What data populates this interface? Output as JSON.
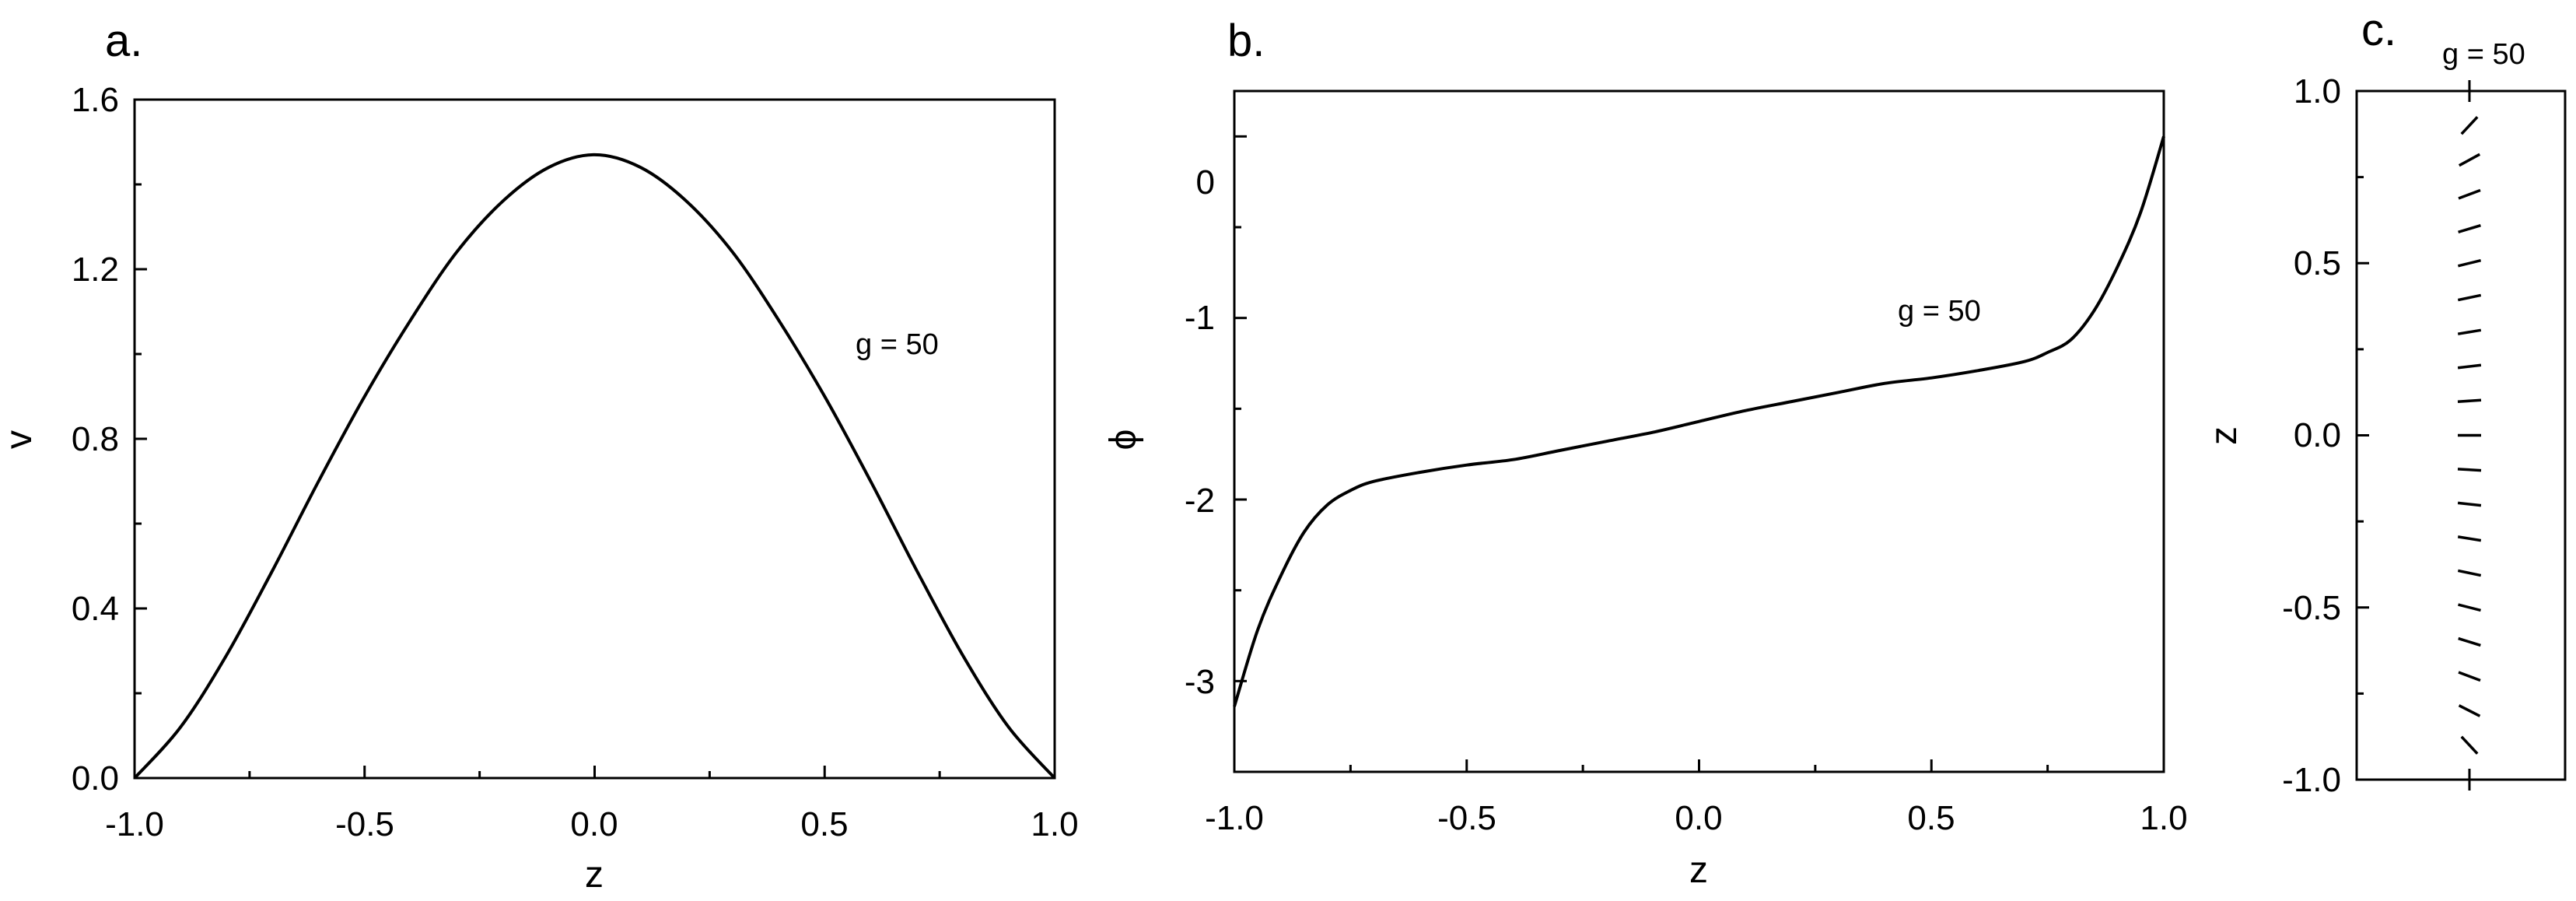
{
  "chart_data": [
    {
      "panel_label": "a.",
      "type": "line",
      "xlabel": "z",
      "ylabel": "v",
      "xlim": [
        -1.0,
        1.0
      ],
      "ylim": [
        0.0,
        1.6
      ],
      "xticks": [
        "-1.0",
        "-0.5",
        "0.0",
        "0.5",
        "1.0"
      ],
      "yticks": [
        "0.0",
        "0.4",
        "0.8",
        "1.2",
        "1.6"
      ],
      "annotation": "g = 50",
      "grid": false,
      "series": [
        {
          "x": [
            -1.0,
            -0.9,
            -0.8,
            -0.7,
            -0.6,
            -0.5,
            -0.4,
            -0.3,
            -0.2,
            -0.1,
            0.0,
            0.1,
            0.2,
            0.3,
            0.4,
            0.5,
            0.6,
            0.7,
            0.8,
            0.9,
            1.0
          ],
          "y": [
            0.0,
            0.12,
            0.29,
            0.49,
            0.7,
            0.9,
            1.08,
            1.24,
            1.36,
            1.44,
            1.47,
            1.44,
            1.36,
            1.24,
            1.08,
            0.9,
            0.7,
            0.49,
            0.29,
            0.12,
            0.0
          ]
        }
      ]
    },
    {
      "panel_label": "b.",
      "type": "line",
      "xlabel": "z",
      "ylabel": "ϕ",
      "xlim": [
        -1.0,
        1.0
      ],
      "ylim": [
        -3.5,
        0.25
      ],
      "xticks": [
        "-1.0",
        "-0.5",
        "0.0",
        "0.5",
        "1.0"
      ],
      "yticks": [
        "0",
        "-1",
        "-2",
        "-3"
      ],
      "annotation": "g = 50",
      "grid": false,
      "series": [
        {
          "x": [
            -1.0,
            -0.95,
            -0.9,
            -0.85,
            -0.8,
            -0.75,
            -0.7,
            -0.6,
            -0.5,
            -0.4,
            -0.3,
            -0.2,
            -0.1,
            0.0,
            0.1,
            0.2,
            0.3,
            0.4,
            0.5,
            0.6,
            0.7,
            0.75,
            0.8,
            0.85,
            0.9,
            0.95,
            1.0
          ],
          "y": [
            -3.14,
            -2.72,
            -2.42,
            -2.18,
            -2.03,
            -1.95,
            -1.9,
            -1.85,
            -1.81,
            -1.78,
            -1.73,
            -1.68,
            -1.63,
            -1.57,
            -1.51,
            -1.46,
            -1.41,
            -1.36,
            -1.33,
            -1.29,
            -1.24,
            -1.19,
            -1.12,
            -0.96,
            -0.72,
            -0.42,
            0.0
          ]
        }
      ]
    },
    {
      "panel_label": "c.",
      "type": "scatter",
      "ylabel": "z",
      "ylim": [
        -1.0,
        1.0
      ],
      "yticks": [
        "-1.0",
        "-0.5",
        "0.0",
        "0.5",
        "1.0"
      ],
      "annotation": "g = 50",
      "grid": false,
      "director_field": {
        "z": [
          -0.9,
          -0.8,
          -0.7,
          -0.6,
          -0.5,
          -0.4,
          -0.3,
          -0.2,
          -0.1,
          0.0,
          0.1,
          0.2,
          0.3,
          0.4,
          0.5,
          0.6,
          0.7,
          0.8,
          0.9
        ],
        "phi": [
          -2.39,
          -2.04,
          -1.93,
          -1.87,
          -1.82,
          -1.78,
          -1.73,
          -1.68,
          -1.63,
          -1.57,
          -1.51,
          -1.46,
          -1.41,
          -1.36,
          -1.33,
          -1.28,
          -1.21,
          -1.07,
          -0.75
        ]
      }
    }
  ]
}
